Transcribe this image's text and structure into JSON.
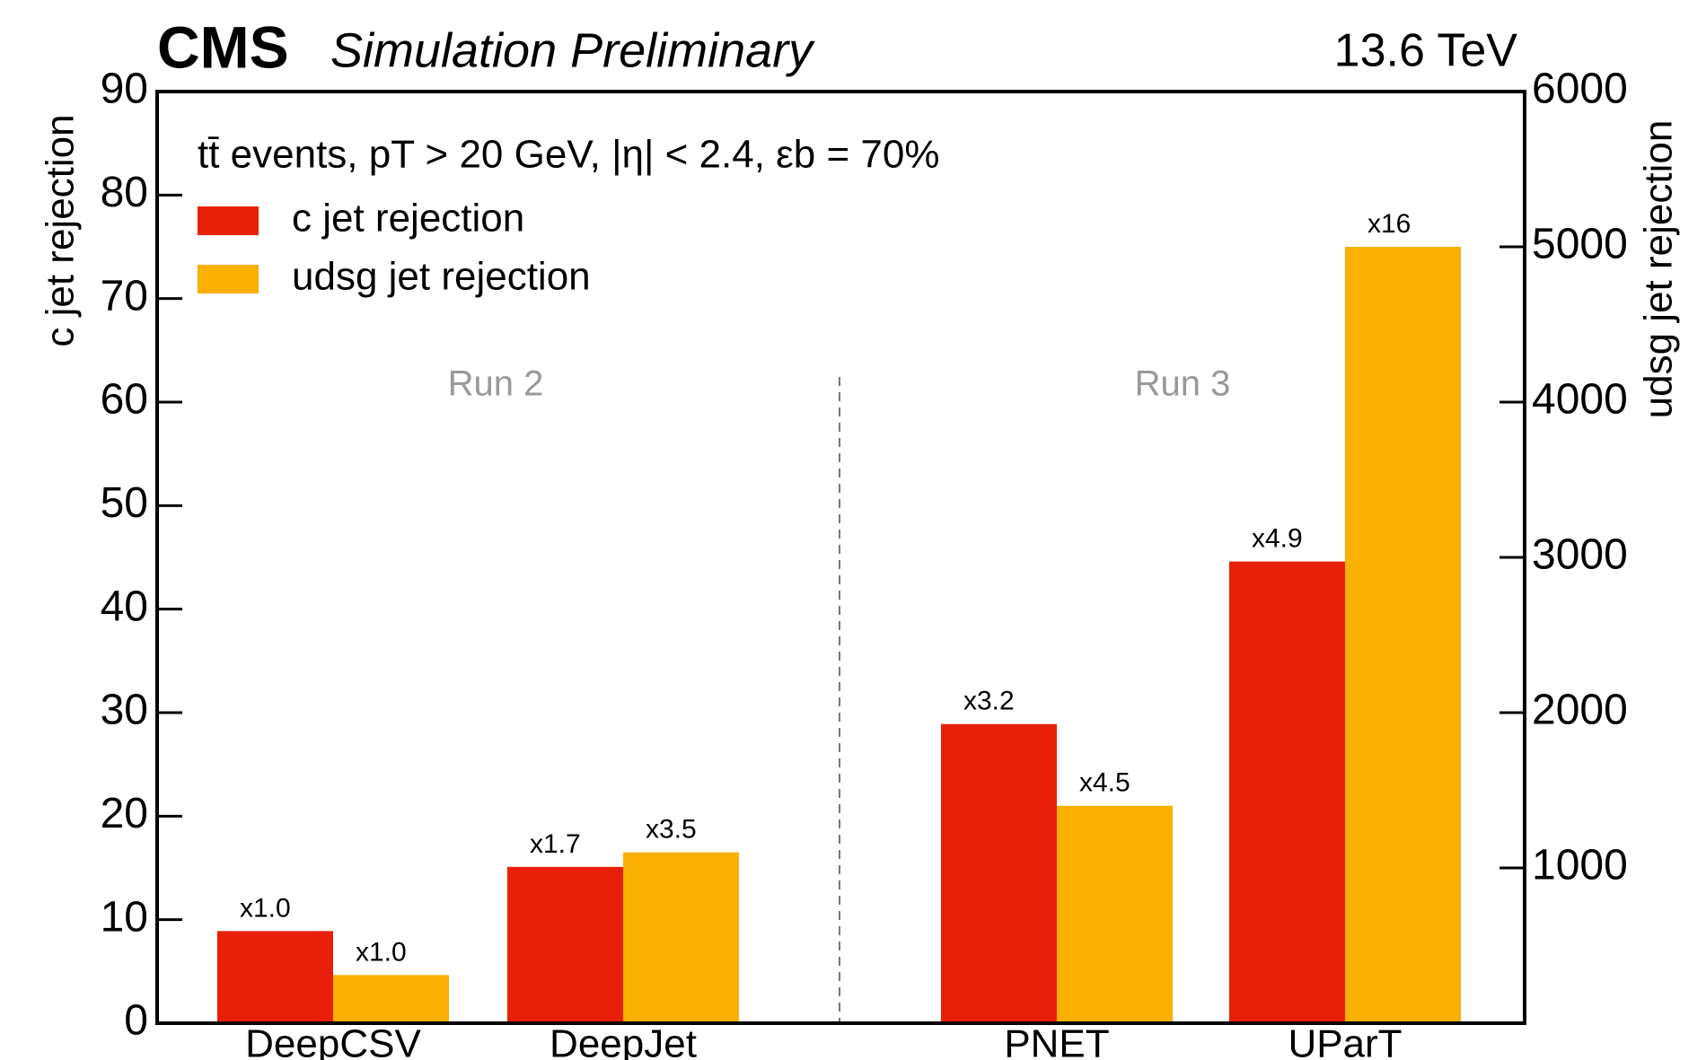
{
  "chart_data": {
    "type": "bar",
    "title": "CMS",
    "subtitle": "Simulation Preliminary",
    "energy_label": "13.6 TeV",
    "annotation": "tt̄ events, pT > 20 GeV, |η| < 2.4, εb = 70%",
    "groups": [
      "Run 2",
      "Run 3"
    ],
    "categories": [
      "DeepCSV",
      "DeepJet",
      "PNET",
      "UParT"
    ],
    "ylabel": "c jet rejection",
    "y2label": "udsg jet rejection",
    "ylim": [
      0,
      90
    ],
    "yticks": [
      0,
      10,
      20,
      30,
      40,
      50,
      60,
      70,
      80,
      90
    ],
    "y2lim": [
      0,
      6000
    ],
    "y2ticks": [
      1000,
      2000,
      3000,
      4000,
      5000,
      6000
    ],
    "legend": "upper left",
    "series": [
      {
        "name": "c jet rejection",
        "color": "#e8200a",
        "values": [
          8.9,
          15.1,
          28.9,
          44.6
        ],
        "value_labels": [
          "x1.0",
          "x1.7",
          "x3.2",
          "x4.9"
        ]
      },
      {
        "name": "udsg jet rejection",
        "color": "#f9b000",
        "axis": "y2",
        "values": [
          310,
          1100,
          1400,
          5000
        ],
        "value_labels": [
          "x1.0",
          "x3.5",
          "x4.5",
          "x16"
        ]
      }
    ]
  }
}
